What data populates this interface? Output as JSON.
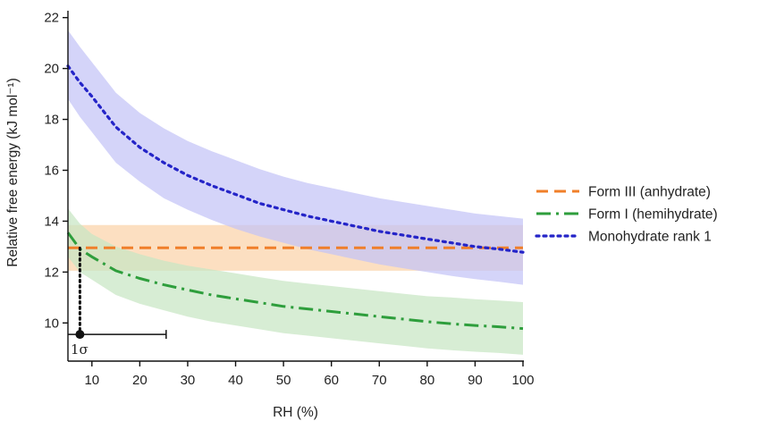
{
  "chart_data": {
    "type": "line",
    "title": "",
    "xlabel": "RH (%)",
    "ylabel": "Relative free energy (kJ mol⁻¹)",
    "xlim": [
      5,
      100
    ],
    "ylim": [
      8.5,
      22.2
    ],
    "x_ticks": [
      10,
      20,
      30,
      40,
      50,
      60,
      70,
      80,
      90,
      100
    ],
    "y_ticks": [
      10,
      12,
      14,
      16,
      18,
      20,
      22
    ],
    "grid": false,
    "legend_position": "right",
    "x": [
      5,
      7.5,
      10,
      15,
      20,
      25,
      30,
      35,
      40,
      45,
      50,
      55,
      60,
      65,
      70,
      75,
      80,
      85,
      90,
      95,
      100
    ],
    "series": [
      {
        "name": "Form III (anhydrate)",
        "color": "#f07f2a",
        "band_color": "#fbd3a9",
        "line_style": "dashed",
        "values": [
          12.95,
          12.95,
          12.95,
          12.95,
          12.95,
          12.95,
          12.95,
          12.95,
          12.95,
          12.95,
          12.95,
          12.95,
          12.95,
          12.95,
          12.95,
          12.95,
          12.95,
          12.95,
          12.95,
          12.95,
          12.95
        ],
        "lower": [
          12.05,
          12.05,
          12.05,
          12.05,
          12.05,
          12.05,
          12.05,
          12.05,
          12.05,
          12.05,
          12.05,
          12.05,
          12.05,
          12.05,
          12.05,
          12.05,
          12.05,
          12.05,
          12.05,
          12.05,
          12.05
        ],
        "upper": [
          13.85,
          13.85,
          13.85,
          13.85,
          13.85,
          13.85,
          13.85,
          13.85,
          13.85,
          13.85,
          13.85,
          13.85,
          13.85,
          13.85,
          13.85,
          13.85,
          13.85,
          13.85,
          13.85,
          13.85,
          13.85
        ]
      },
      {
        "name": "Form I (hemihydrate)",
        "color": "#2e9e3c",
        "band_color": "#c7e6c4",
        "line_style": "dashdot",
        "values": [
          13.55,
          12.9,
          12.6,
          12.05,
          11.75,
          11.5,
          11.3,
          11.1,
          10.95,
          10.8,
          10.65,
          10.55,
          10.45,
          10.35,
          10.25,
          10.15,
          10.05,
          9.97,
          9.9,
          9.85,
          9.78
        ],
        "lower": [
          12.6,
          12.0,
          11.7,
          11.1,
          10.75,
          10.5,
          10.25,
          10.05,
          9.9,
          9.75,
          9.6,
          9.5,
          9.4,
          9.3,
          9.2,
          9.1,
          9.0,
          8.93,
          8.87,
          8.82,
          8.75
        ],
        "upper": [
          14.5,
          13.9,
          13.5,
          13.0,
          12.7,
          12.45,
          12.25,
          12.1,
          11.95,
          11.8,
          11.65,
          11.55,
          11.45,
          11.35,
          11.25,
          11.15,
          11.05,
          11.0,
          10.93,
          10.88,
          10.82
        ]
      },
      {
        "name": "Monohydrate rank 1",
        "color": "#2424c8",
        "band_color": "#c4c4f7",
        "line_style": "dotted",
        "values": [
          20.1,
          19.45,
          18.9,
          17.7,
          16.9,
          16.3,
          15.8,
          15.4,
          15.05,
          14.7,
          14.45,
          14.2,
          14.0,
          13.8,
          13.6,
          13.45,
          13.3,
          13.15,
          13.0,
          12.9,
          12.78
        ],
        "lower": [
          18.8,
          18.1,
          17.5,
          16.3,
          15.55,
          14.9,
          14.45,
          14.05,
          13.7,
          13.4,
          13.15,
          12.9,
          12.7,
          12.5,
          12.3,
          12.15,
          12.0,
          11.85,
          11.72,
          11.62,
          11.5
        ],
        "upper": [
          21.5,
          20.85,
          20.25,
          19.05,
          18.25,
          17.65,
          17.15,
          16.75,
          16.4,
          16.05,
          15.75,
          15.5,
          15.3,
          15.1,
          14.9,
          14.75,
          14.6,
          14.45,
          14.3,
          14.2,
          14.1
        ]
      }
    ],
    "annotations": {
      "crossing_x": 7.5,
      "crossing_y": 12.95,
      "sigma_point": {
        "x": 7.5,
        "y": 9.55
      },
      "sigma_bar": {
        "x_from": 5,
        "x_to": 25.5,
        "y": 9.55
      },
      "sigma_label": "1σ"
    }
  }
}
